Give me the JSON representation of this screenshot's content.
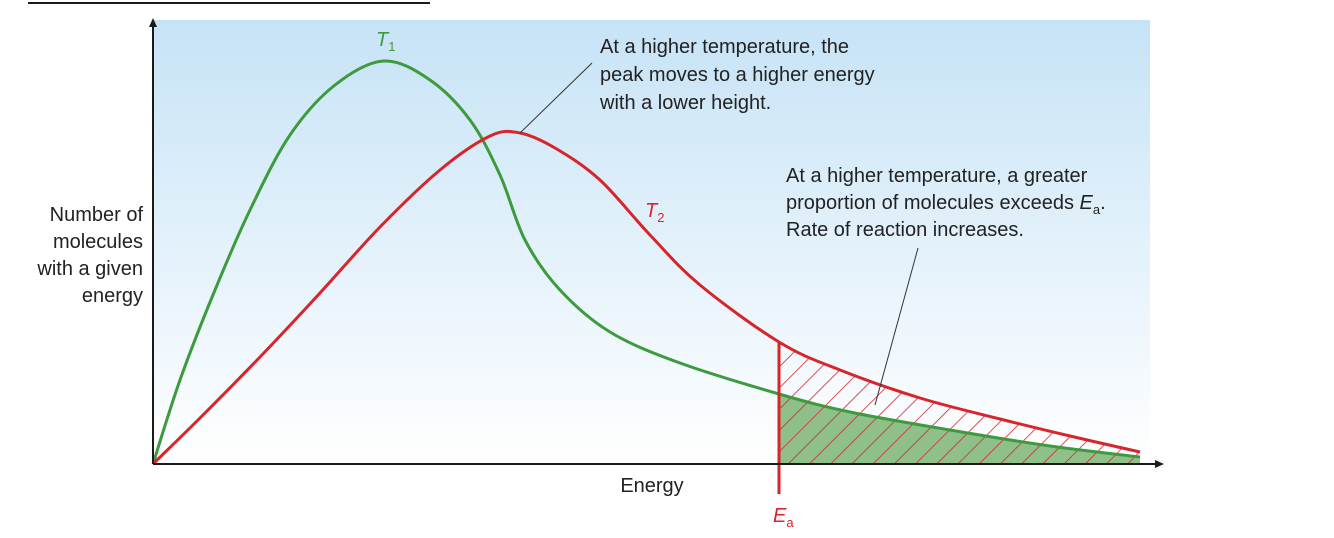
{
  "diagram": {
    "x_axis_label": "Energy",
    "y_axis_label_lines": [
      "Number of",
      "molecules",
      "with a given",
      "energy"
    ],
    "curve_t1": {
      "label": "T",
      "subscript": "1",
      "color": "#3d9a3d"
    },
    "curve_t2": {
      "label": "T",
      "subscript": "2",
      "color": "#d6252b"
    },
    "activation_energy": {
      "label": "E",
      "subscript": "a"
    },
    "annotation_peak_lines": [
      "At a higher temperature, the",
      "peak moves to a higher energy",
      "with a lower height."
    ],
    "annotation_area": {
      "line1": "At a higher temperature, a greater",
      "line2_prefix": "proportion of molecules exceeds ",
      "line2_symbol": "E",
      "line2_subscript": "a",
      "line2_suffix": ".",
      "line3": "Rate of reaction increases."
    },
    "colors": {
      "background_top": "#c6e3f6",
      "background_bottom": "#ffffff",
      "axis": "#1a1a1a",
      "shaded_area": "#8fc08a",
      "hatch": "#d6252b"
    }
  }
}
